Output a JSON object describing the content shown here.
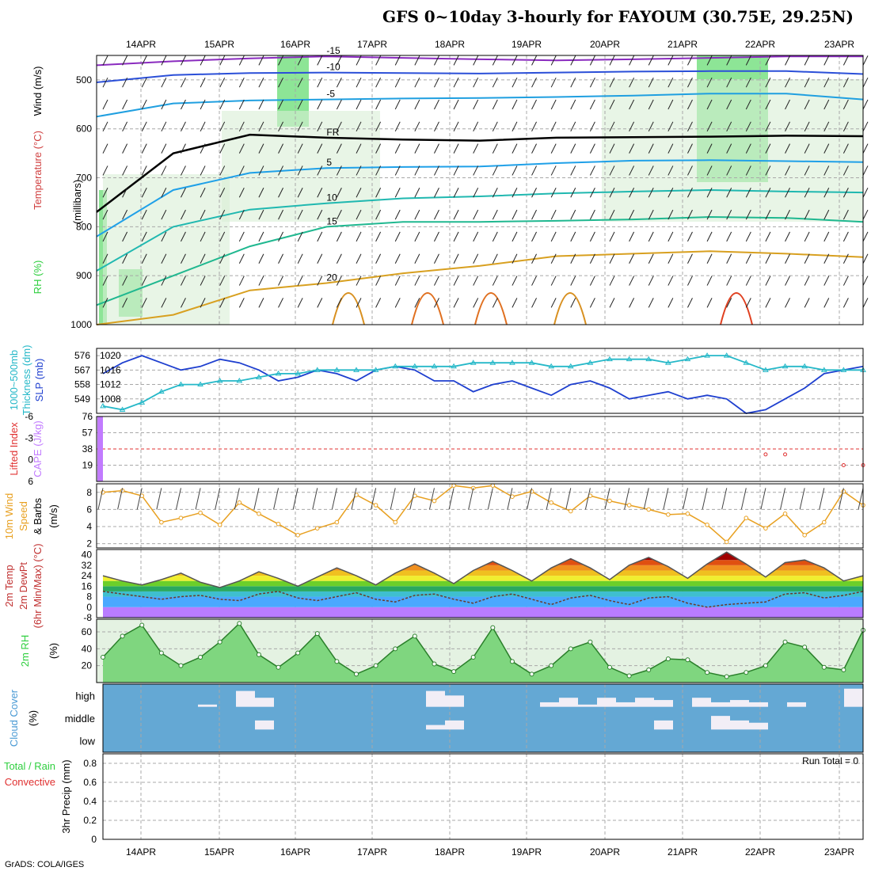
{
  "title": "GFS 0~10day 3-hourly for FAYOUM (30.75E, 29.25N)",
  "credit": "GrADS: COLA/IGES",
  "date_labels": [
    "14APR",
    "15APR",
    "16APR",
    "17APR",
    "18APR",
    "19APR",
    "20APR",
    "21APR",
    "22APR",
    "23APR"
  ],
  "colors": {
    "rh_green": "#2fcf3f",
    "thickness": "#25b8c8",
    "slp": "#1e3fcf",
    "cape": "#c27bff",
    "lifted_index": "#e03030",
    "wind_speed": "#e8a020",
    "cloud_bg": "#64a8d4",
    "cloud_fill": "#f2eef6",
    "grid": "#a8a8a8"
  },
  "chart_data": [
    {
      "type": "contour",
      "panel": "upper_air",
      "ylabel_parts": [
        "RH (%)",
        "Temperature (°C)",
        "Wind (m/s)",
        "(millibars)"
      ],
      "y_ticks": [
        "500",
        "600",
        "700",
        "800",
        "900",
        "1000"
      ],
      "ylim": [
        1000,
        450
      ],
      "temperature_contour_labels": [
        "-15",
        "-10",
        "-10",
        "-5",
        "-5",
        "FR",
        "FR",
        "FR",
        "5",
        "5",
        "10",
        "10",
        "15",
        "20"
      ],
      "temperature_contours": [
        {
          "label": "-15",
          "pressure": [
            470,
            462,
            456,
            452,
            455,
            458,
            460,
            458,
            455,
            452,
            452
          ]
        },
        {
          "label": "-10",
          "pressure": [
            505,
            490,
            486,
            485,
            486,
            487,
            485,
            483,
            482,
            482,
            488
          ]
        },
        {
          "label": "-5",
          "pressure": [
            575,
            548,
            542,
            540,
            538,
            537,
            535,
            532,
            528,
            528,
            540
          ]
        },
        {
          "label": "FR",
          "pressure": [
            770,
            650,
            612,
            618,
            622,
            624,
            618,
            617,
            616,
            614,
            615
          ]
        },
        {
          "label": "5",
          "pressure": [
            820,
            725,
            690,
            680,
            678,
            677,
            670,
            665,
            664,
            666,
            668
          ]
        },
        {
          "label": "10",
          "pressure": [
            890,
            800,
            765,
            752,
            742,
            738,
            732,
            728,
            725,
            728,
            730
          ]
        },
        {
          "label": "15",
          "pressure": [
            960,
            900,
            840,
            800,
            790,
            790,
            788,
            785,
            780,
            782,
            790
          ]
        },
        {
          "label": "20",
          "pressure": [
            1000,
            980,
            930,
            915,
            895,
            880,
            860,
            855,
            850,
            855,
            862
          ]
        }
      ],
      "pressure_levels_hpa": [
        500,
        600,
        700,
        800,
        900,
        1000
      ]
    },
    {
      "type": "line",
      "panel": "slp_thickness",
      "ylabel_parts": [
        "1000~500mb",
        "Thickness (dm)",
        "SLP (mb)"
      ],
      "y_ticks_left": [
        "549",
        "558",
        "567",
        "576"
      ],
      "y_ticks_right": [
        "1008",
        "1012",
        "1016",
        "1020"
      ],
      "ylim_slp": [
        1004,
        1022
      ],
      "series": [
        {
          "name": "SLP (mb)",
          "values": [
            1015,
            1018,
            1020,
            1018,
            1016,
            1017,
            1019,
            1018,
            1016,
            1013,
            1014,
            1016,
            1015,
            1013,
            1016,
            1017,
            1016,
            1013,
            1013,
            1010,
            1012,
            1013,
            1011,
            1009,
            1012,
            1013,
            1011,
            1008,
            1009,
            1010,
            1008,
            1009,
            1008,
            1004,
            1005,
            1008,
            1011,
            1015,
            1016,
            1017
          ]
        },
        {
          "name": "1000~500mb Thickness (dm)",
          "values": [
            1006,
            1005,
            1007,
            1010,
            1012,
            1012,
            1013,
            1013,
            1014,
            1015,
            1015,
            1016,
            1016,
            1016,
            1016,
            1017,
            1017,
            1017,
            1017,
            1018,
            1018,
            1018,
            1018,
            1017,
            1017,
            1018,
            1019,
            1019,
            1019,
            1018,
            1019,
            1020,
            1020,
            1018,
            1016,
            1017,
            1017,
            1016,
            1016,
            1016
          ]
        }
      ]
    },
    {
      "type": "bar",
      "panel": "cape_li",
      "ylabel_parts": [
        "Lifted Index",
        "CAPE (J/kg)"
      ],
      "y_ticks_left": [
        "6",
        "0",
        "-3",
        "-6"
      ],
      "y_ticks_right": [
        "19",
        "38",
        "57",
        "76"
      ],
      "series": [
        {
          "name": "CAPE (J/kg)",
          "values": [
            76,
            0,
            0,
            0,
            0,
            0,
            0,
            0,
            0,
            0,
            0,
            0,
            0,
            0,
            0,
            0,
            0,
            0,
            0,
            0,
            0,
            0,
            0,
            0,
            0,
            0,
            0,
            0,
            0,
            0,
            0,
            0,
            0,
            0,
            0,
            0,
            0,
            0,
            0,
            0
          ]
        },
        {
          "name": "Lifted Index",
          "values": [
            null,
            null,
            null,
            null,
            null,
            null,
            null,
            null,
            null,
            null,
            null,
            null,
            null,
            null,
            null,
            null,
            null,
            null,
            null,
            null,
            null,
            null,
            null,
            null,
            null,
            null,
            null,
            null,
            null,
            null,
            null,
            null,
            null,
            null,
            1,
            1,
            null,
            null,
            3,
            3
          ]
        }
      ]
    },
    {
      "type": "line",
      "panel": "wind10m",
      "ylabel_parts": [
        "10m Wind",
        "Speed",
        "& Barbs",
        "(m/s)"
      ],
      "y_ticks": [
        "2",
        "4",
        "6",
        "8"
      ],
      "ylim": [
        2,
        9
      ],
      "series": [
        {
          "name": "10m Wind Speed (m/s)",
          "values": [
            8,
            8.2,
            7.6,
            4.5,
            5,
            5.6,
            4.2,
            6.8,
            5.5,
            4.3,
            3,
            3.8,
            4.5,
            7.7,
            6.5,
            4.5,
            7.6,
            7,
            8.8,
            8.5,
            8.8,
            7.5,
            8.1,
            6.8,
            5.8,
            7.6,
            7,
            6.5,
            6,
            5.4,
            5.5,
            4.2,
            2.2,
            5,
            3.8,
            5.5,
            3,
            4.5,
            8.1,
            6.5
          ]
        }
      ]
    },
    {
      "type": "area",
      "panel": "temp2m",
      "ylabel_parts": [
        "2m Temp",
        "2m DewPt",
        "(6hr Min/Max) (°C)"
      ],
      "y_ticks": [
        "-8",
        "0",
        "8",
        "16",
        "24",
        "32",
        "40"
      ],
      "ylim": [
        -8,
        44
      ],
      "series": [
        {
          "name": "2m Temp",
          "values": [
            24,
            20,
            17,
            21,
            26,
            19,
            15,
            20,
            27,
            22,
            16,
            23,
            30,
            24,
            17,
            26,
            33,
            26,
            18,
            28,
            35,
            28,
            20,
            30,
            37,
            30,
            21,
            32,
            38,
            31,
            22,
            33,
            42,
            33,
            23,
            34,
            36,
            30,
            20,
            24
          ]
        },
        {
          "name": "2m DewPt",
          "values": [
            12,
            10,
            8,
            6,
            8,
            9,
            6,
            5,
            10,
            12,
            7,
            5,
            8,
            11,
            6,
            4,
            9,
            10,
            6,
            3,
            8,
            10,
            6,
            2,
            7,
            9,
            5,
            2,
            7,
            8,
            3,
            0,
            2,
            3,
            4,
            10,
            11,
            7,
            9,
            12
          ]
        }
      ]
    },
    {
      "type": "area",
      "panel": "rh2m",
      "ylabel_parts": [
        "2m RH",
        "(%)"
      ],
      "y_ticks": [
        "20",
        "40",
        "60"
      ],
      "ylim": [
        0,
        75
      ],
      "series": [
        {
          "name": "2m RH (%)",
          "values": [
            30,
            55,
            68,
            35,
            20,
            30,
            48,
            70,
            33,
            18,
            35,
            58,
            25,
            10,
            20,
            40,
            55,
            22,
            13,
            30,
            65,
            25,
            10,
            20,
            40,
            48,
            18,
            8,
            15,
            28,
            27,
            12,
            7,
            12,
            20,
            48,
            42,
            18,
            15,
            62
          ]
        }
      ]
    },
    {
      "type": "heatmap",
      "panel": "cloud_cover",
      "ylabel_parts": [
        "Cloud Cover",
        "(%)"
      ],
      "row_labels": [
        "high",
        "middle",
        "low"
      ],
      "high": [
        0,
        0,
        0,
        0,
        0,
        10,
        0,
        70,
        40,
        0,
        0,
        0,
        0,
        0,
        0,
        0,
        0,
        70,
        50,
        0,
        0,
        0,
        0,
        20,
        40,
        10,
        40,
        20,
        40,
        30,
        0,
        40,
        20,
        30,
        20,
        0,
        20,
        0,
        0,
        80
      ],
      "middle": [
        0,
        0,
        0,
        0,
        0,
        0,
        0,
        0,
        40,
        0,
        0,
        0,
        0,
        0,
        0,
        0,
        0,
        20,
        40,
        0,
        0,
        0,
        0,
        0,
        0,
        0,
        0,
        0,
        0,
        40,
        0,
        0,
        60,
        40,
        30,
        0,
        0,
        0,
        0,
        0
      ],
      "low": [
        0,
        0,
        0,
        0,
        0,
        0,
        0,
        0,
        0,
        0,
        0,
        0,
        0,
        0,
        0,
        0,
        0,
        0,
        0,
        0,
        0,
        0,
        0,
        0,
        0,
        0,
        0,
        0,
        0,
        0,
        0,
        0,
        0,
        0,
        0,
        0,
        0,
        0,
        0,
        0
      ]
    },
    {
      "type": "bar",
      "panel": "precip",
      "ylabel_parts": [
        "Total / Rain",
        "Convective",
        "3hr Precip (mm)"
      ],
      "y_ticks": [
        "0",
        "0.2",
        "0.4",
        "0.6",
        "0.8"
      ],
      "ylim": [
        0,
        0.9
      ],
      "annotation": "Run Total = 0",
      "series": [
        {
          "name": "3hr Precip (mm)",
          "values": [
            0,
            0,
            0,
            0,
            0,
            0,
            0,
            0,
            0,
            0,
            0,
            0,
            0,
            0,
            0,
            0,
            0,
            0,
            0,
            0,
            0,
            0,
            0,
            0,
            0,
            0,
            0,
            0,
            0,
            0,
            0,
            0,
            0,
            0,
            0,
            0,
            0,
            0,
            0,
            0
          ]
        }
      ]
    }
  ]
}
